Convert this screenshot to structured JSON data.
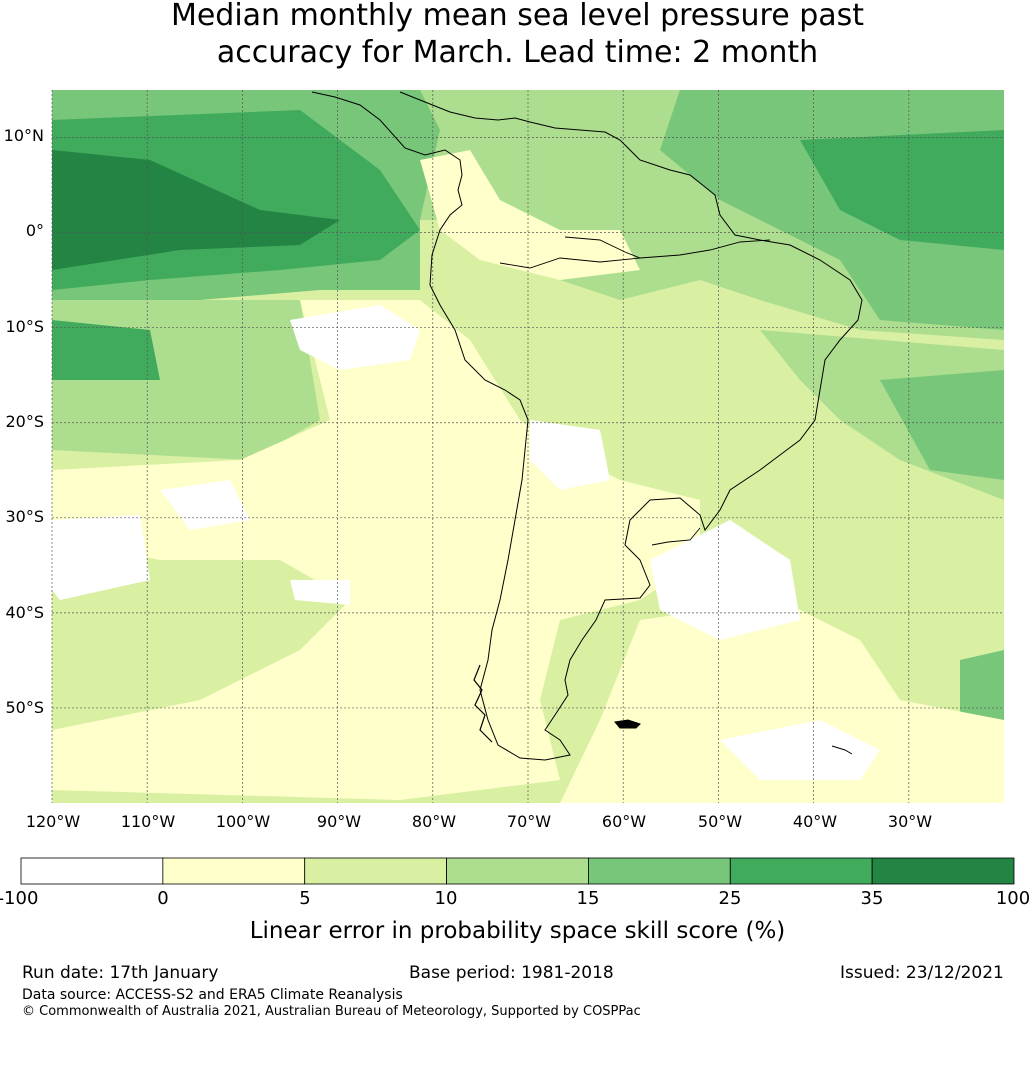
{
  "title": {
    "line1": "Median monthly mean sea level pressure past",
    "line2": "accuracy for March. Lead time: 2 month"
  },
  "map": {
    "region": "South America and surrounding oceans",
    "lat_labels": [
      "10°N",
      "0°",
      "10°S",
      "20°S",
      "30°S",
      "40°S",
      "50°S"
    ],
    "lon_labels": [
      "120°W",
      "110°W",
      "100°W",
      "90°W",
      "80°W",
      "70°W",
      "60°W",
      "50°W",
      "40°W",
      "30°W"
    ],
    "lat_values": [
      10,
      0,
      -10,
      -20,
      -30,
      -40,
      -50
    ],
    "lon_values": [
      -120,
      -110,
      -100,
      -90,
      -80,
      -70,
      -60,
      -50,
      -40,
      -30
    ],
    "extent": {
      "lon_min": -120,
      "lon_max": -20,
      "lat_min": -60,
      "lat_max": 15
    }
  },
  "colorbar": {
    "title": "Linear error in probability space skill score (%)",
    "ticks": [
      "-100",
      "0",
      "5",
      "10",
      "15",
      "25",
      "35",
      "100"
    ],
    "colors": [
      "#ffffff",
      "#ffffcc",
      "#d9f0a3",
      "#addd8e",
      "#78c679",
      "#41ab5d",
      "#238443"
    ]
  },
  "footer": {
    "run_date": "Run date: 17th January",
    "base_period": "Base period: 1981-2018",
    "issued": "Issued: 23/12/2021",
    "data_source": "Data source: ACCESS-S2 and ERA5 Climate Reanalysis",
    "copyright": "© Commonwealth of Australia 2021, Australian Bureau of Meteorology, Supported by COSPPac"
  }
}
